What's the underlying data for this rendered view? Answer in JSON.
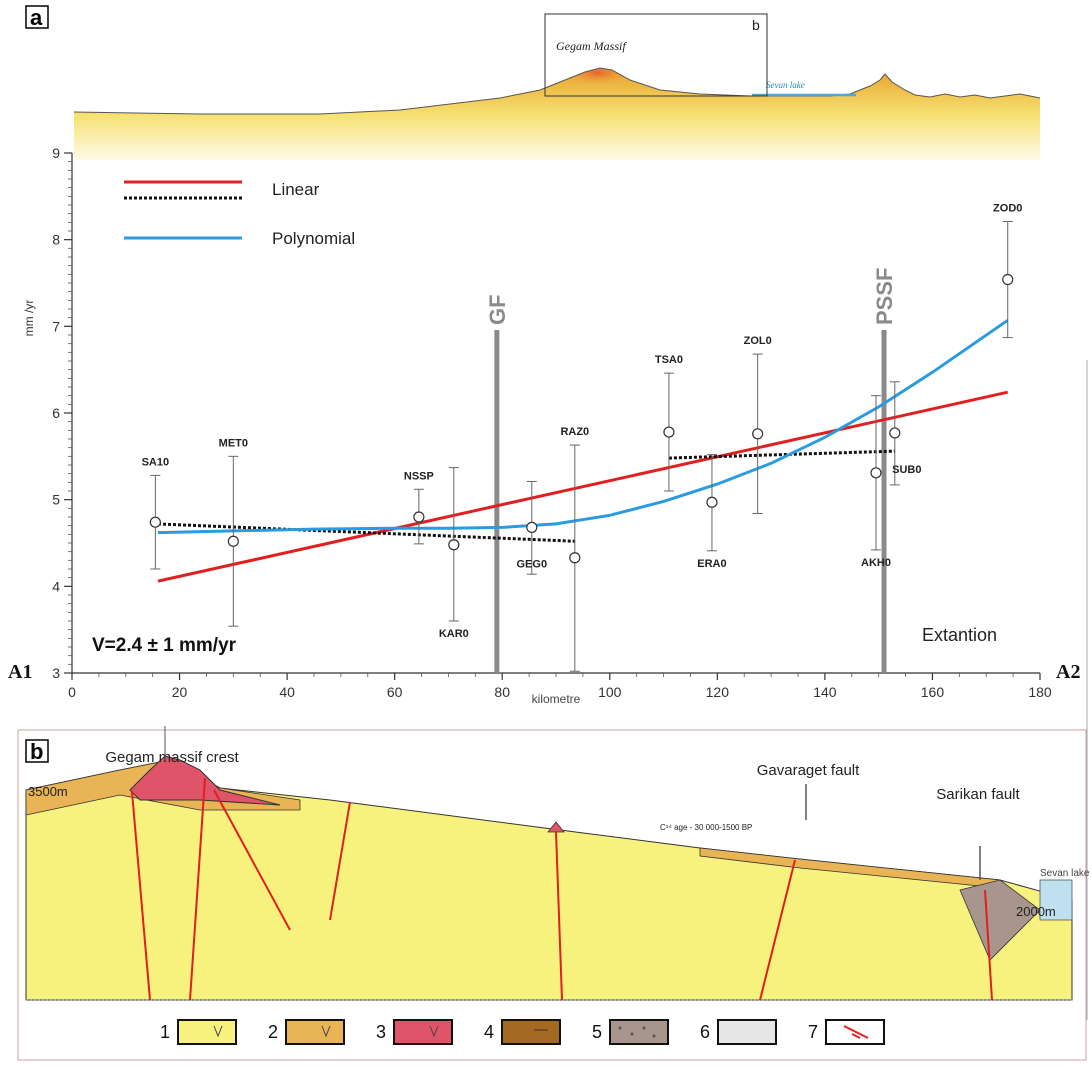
{
  "panel_a": {
    "label": "a",
    "inset_label": "b",
    "massif_label": "Gegam Massif",
    "lake_label": "Sevan lake",
    "endpoint_left": "A1",
    "endpoint_right": "A2",
    "velocity_text": "V=2.4 ± 1 mm/yr",
    "extension_text": "Extantion",
    "legend": {
      "linear": "Linear",
      "polynomial": "Polynomial"
    },
    "faults": [
      {
        "name": "GF",
        "x": 79
      },
      {
        "name": "PSSF",
        "x": 151
      }
    ]
  },
  "chart_data": {
    "type": "scatter",
    "xlabel": "kilometre",
    "ylabel": "mm /yr",
    "xlim": [
      0,
      180
    ],
    "ylim": [
      3,
      9
    ],
    "x_ticks": [
      "0",
      "20",
      "40",
      "60",
      "80",
      "100",
      "120",
      "140",
      "160",
      "180"
    ],
    "y_ticks": [
      "3",
      "4",
      "5",
      "6",
      "7",
      "8",
      "9"
    ],
    "points": [
      {
        "name": "SA10",
        "x": 15.5,
        "y": 4.74,
        "lo": 4.2,
        "hi": 5.28
      },
      {
        "name": "MET0",
        "x": 30,
        "y": 4.52,
        "lo": 3.54,
        "hi": 5.5
      },
      {
        "name": "NSSP",
        "x": 64.5,
        "y": 4.8,
        "lo": 4.49,
        "hi": 5.12
      },
      {
        "name": "KAR0",
        "x": 71,
        "y": 4.48,
        "lo": 3.6,
        "hi": 5.37
      },
      {
        "name": "GEG0",
        "x": 85.5,
        "y": 4.68,
        "lo": 4.14,
        "hi": 5.21
      },
      {
        "name": "RAZ0",
        "x": 93.5,
        "y": 4.33,
        "lo": 3.02,
        "hi": 5.63
      },
      {
        "name": "TSA0",
        "x": 111,
        "y": 5.78,
        "lo": 5.1,
        "hi": 6.46
      },
      {
        "name": "ERA0",
        "x": 119,
        "y": 4.97,
        "lo": 4.41,
        "hi": 5.52
      },
      {
        "name": "ZOL0",
        "x": 127.5,
        "y": 5.76,
        "lo": 4.84,
        "hi": 6.68
      },
      {
        "name": "AKH0",
        "x": 149.5,
        "y": 5.31,
        "lo": 4.42,
        "hi": 6.2
      },
      {
        "name": "SUB0",
        "x": 153,
        "y": 5.77,
        "lo": 5.17,
        "hi": 6.36
      },
      {
        "name": "ZOD0",
        "x": 174,
        "y": 7.54,
        "lo": 6.87,
        "hi": 8.21
      }
    ],
    "linear_fit": {
      "x": [
        16,
        174
      ],
      "y": [
        4.06,
        6.24
      ],
      "color": "#e02020"
    },
    "dotted_fits": [
      {
        "x": [
          16,
          93.5
        ],
        "y": [
          4.72,
          4.52
        ]
      },
      {
        "x": [
          111,
          153
        ],
        "y": [
          5.48,
          5.56
        ]
      }
    ],
    "polynomial_fit": {
      "x": [
        16,
        30,
        45,
        60,
        70,
        80,
        90,
        100,
        110,
        120,
        130,
        140,
        150,
        160,
        174
      ],
      "y": [
        4.62,
        4.64,
        4.66,
        4.67,
        4.67,
        4.68,
        4.72,
        4.82,
        4.98,
        5.18,
        5.42,
        5.72,
        6.07,
        6.47,
        7.07
      ],
      "color": "#2b9be0"
    }
  },
  "panel_b": {
    "label": "b",
    "crest_label": "Gegam massif crest",
    "crest_elev": "3500m",
    "age_label": "C¹⁴ age - 30 000-1500 BP",
    "fault1": "Gavaraget fault",
    "fault2": "Sarikan fault",
    "lake_label": "Sevan lake",
    "lake_elev": "2000m",
    "legend": [
      {
        "num": "1",
        "color": "#f7f27e",
        "pattern": "v"
      },
      {
        "num": "2",
        "color": "#e8b455",
        "pattern": "v"
      },
      {
        "num": "3",
        "color": "#e0546a",
        "pattern": "v"
      },
      {
        "num": "4",
        "color": "#a56a22",
        "pattern": "dash"
      },
      {
        "num": "5",
        "color": "#a8968e",
        "pattern": "dots"
      },
      {
        "num": "6",
        "color": "#e6e6e6",
        "pattern": "none"
      },
      {
        "num": "7",
        "color": "#ffffff",
        "pattern": "fault"
      }
    ]
  }
}
